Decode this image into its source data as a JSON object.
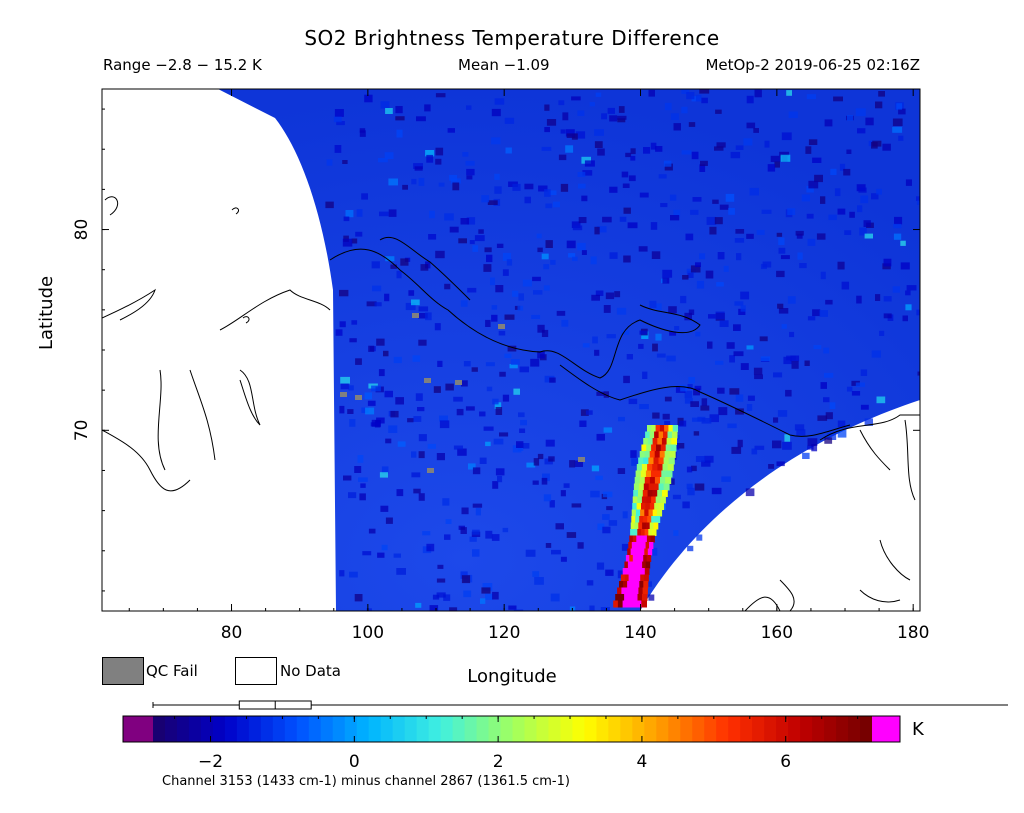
{
  "header": {
    "title": "SO2 Brightness Temperature Difference",
    "range": "Range −2.8 − 15.2 K",
    "mean": "Mean −1.09",
    "satellite": "MetOp-2 2019-06-25 02:16Z"
  },
  "legend": {
    "qc_fail": "QC Fail",
    "no_data": "No Data",
    "qc_fail_color": "#808080",
    "no_data_color": "#ffffff"
  },
  "colorbar": {
    "unit": "K",
    "caption": "Channel 3153 (1433 cm-1) minus channel 2867 (1361.5 cm-1)",
    "range": [
      -2.8,
      7.2
    ],
    "ticks": [
      "−2",
      "0",
      "2",
      "4",
      "6"
    ],
    "tick_values": [
      -2,
      0,
      2,
      4,
      6
    ],
    "under_color": "#800080",
    "over_color": "#ff00ff",
    "stops": [
      "#1a006a",
      "#0000c8",
      "#0050ff",
      "#00b4ff",
      "#40f0e0",
      "#a0ff60",
      "#ffff00",
      "#ffa000",
      "#ff3000",
      "#c00000",
      "#700000"
    ],
    "boxplot": {
      "min": -2.8,
      "q1": -1.6,
      "median": -1.1,
      "q3": -0.6,
      "max": 15.2
    }
  },
  "chart_data": {
    "type": "heatmap",
    "title": "SO2 Brightness Temperature Difference",
    "xlabel": "Longitude",
    "ylabel": "Latitude",
    "xlim": [
      61,
      181
    ],
    "ylim": [
      61,
      87
    ],
    "xticks": [
      80,
      100,
      120,
      140,
      160,
      180
    ],
    "yticks": [
      70,
      80
    ],
    "value_range": [
      -2.8,
      15.2
    ],
    "mean": -1.09,
    "plume": {
      "lon_range": [
        139,
        146
      ],
      "lat_range": [
        61,
        70
      ],
      "max_value_K": 15.2
    }
  }
}
